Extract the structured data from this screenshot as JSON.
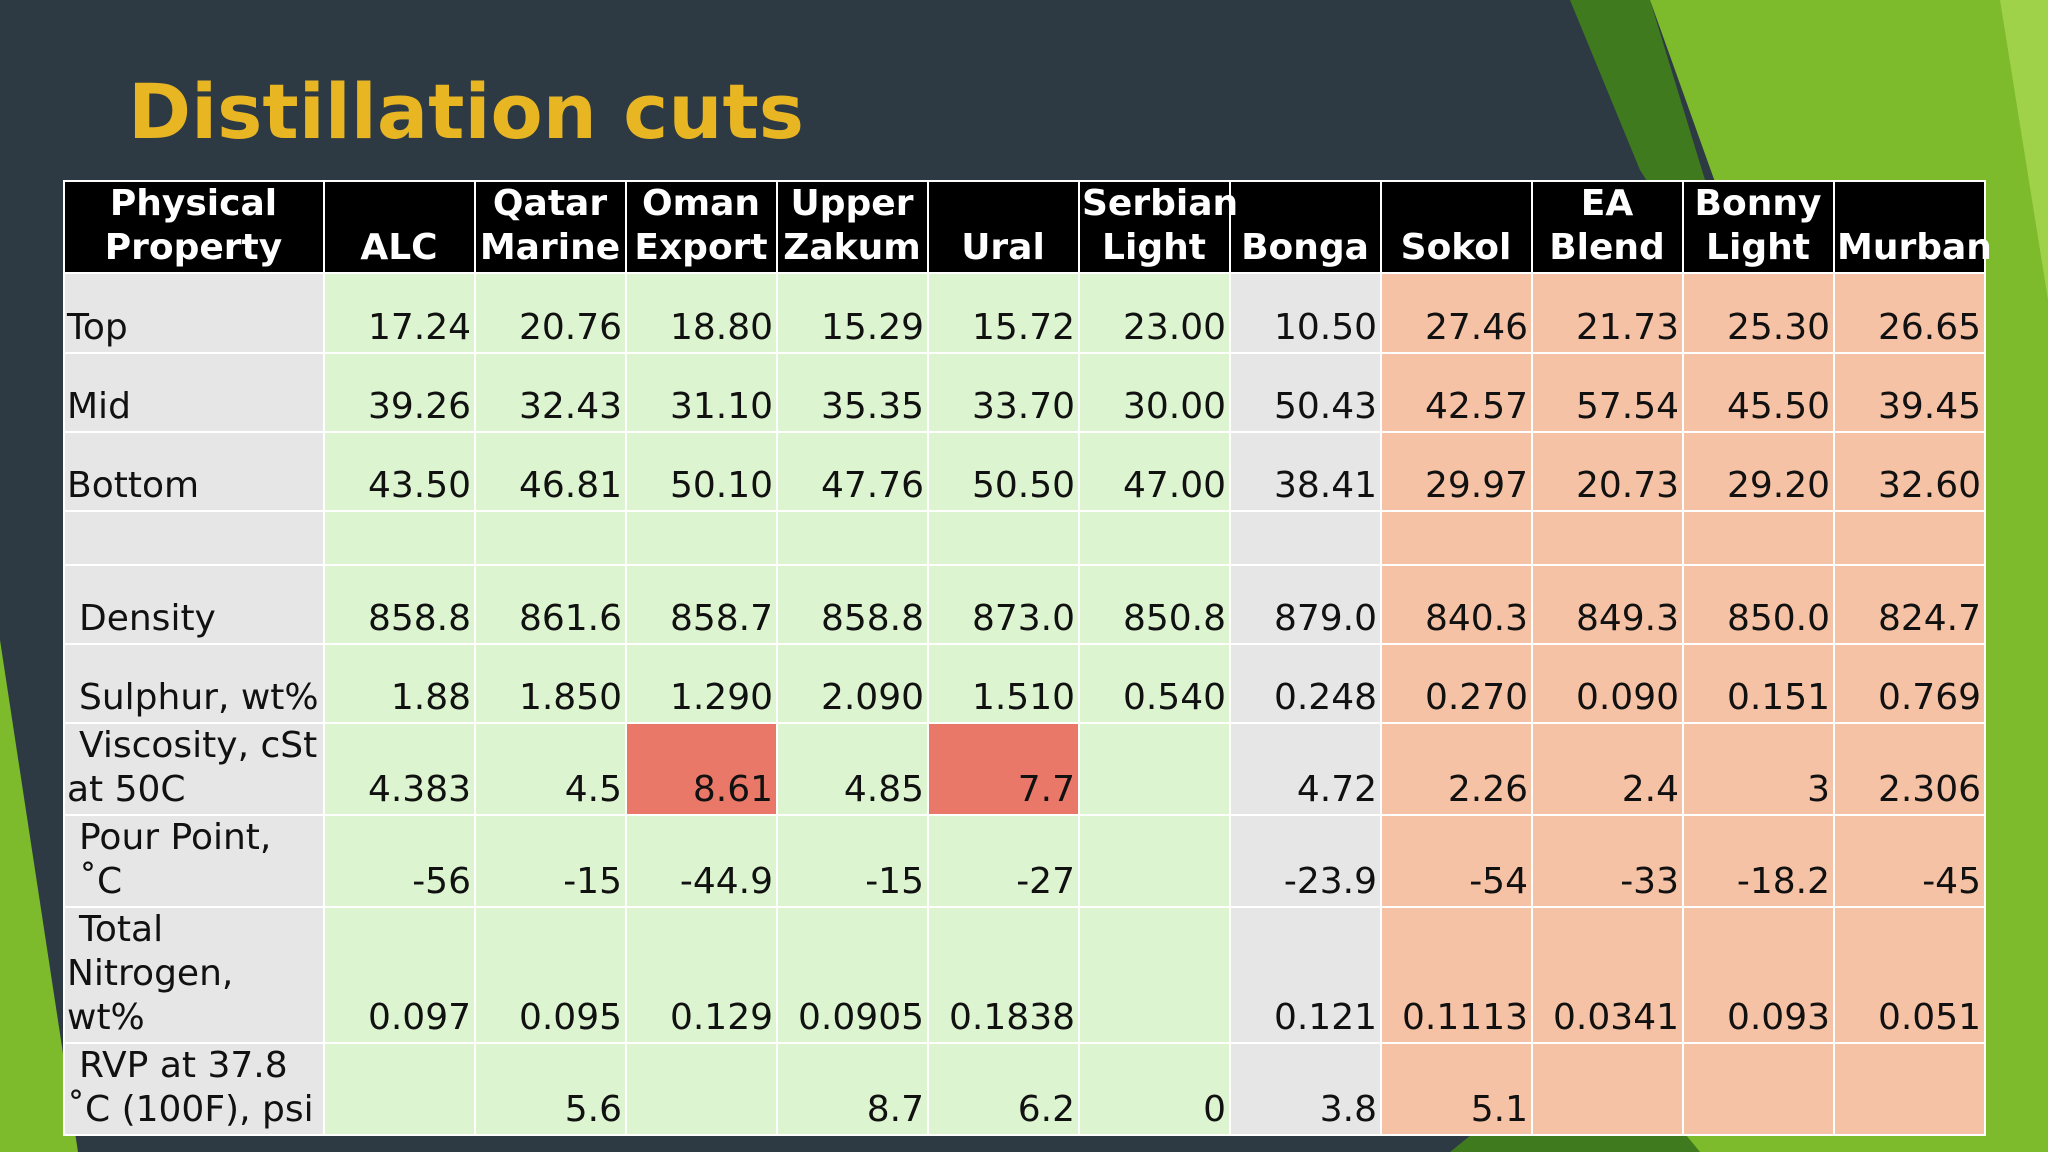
{
  "slide": {
    "title": "Distillation cuts",
    "colors": {
      "background": "#2d3a44",
      "title": "#e8b523",
      "header_bg": "#000000",
      "property_bg": "#e6e6e6",
      "green_cell": "#dcf5d0",
      "peach_cell": "#f6c2a5",
      "red_cell": "#ea7868",
      "accent_green": "#7dba2c"
    }
  },
  "table": {
    "headers": [
      {
        "line1": "Physical",
        "line2": "Property"
      },
      {
        "line1": "",
        "line2": "ALC"
      },
      {
        "line1": "Qatar",
        "line2": "Marine"
      },
      {
        "line1": "Oman",
        "line2": "Export"
      },
      {
        "line1": "Upper",
        "line2": "Zakum"
      },
      {
        "line1": "",
        "line2": "Ural"
      },
      {
        "line1": "Serbian",
        "line2": "Light"
      },
      {
        "line1": "",
        "line2": "Bonga"
      },
      {
        "line1": "",
        "line2": "Sokol"
      },
      {
        "line1": "EA",
        "line2": "Blend"
      },
      {
        "line1": "Bonny",
        "line2": "Light"
      },
      {
        "line1": "",
        "line2": "Murban"
      }
    ],
    "rows": [
      {
        "label1": "",
        "label2": "Top",
        "values": [
          "17.24",
          "20.76",
          "18.80",
          "15.29",
          "15.72",
          "23.00",
          "10.50",
          "27.46",
          "21.73",
          "25.30",
          "26.65"
        ]
      },
      {
        "label1": "",
        "label2": "Mid",
        "values": [
          "39.26",
          "32.43",
          "31.10",
          "35.35",
          "33.70",
          "30.00",
          "50.43",
          "42.57",
          "57.54",
          "45.50",
          "39.45"
        ]
      },
      {
        "label1": "",
        "label2": "Bottom",
        "values": [
          "43.50",
          "46.81",
          "50.10",
          "47.76",
          "50.50",
          "47.00",
          "38.41",
          "29.97",
          "20.73",
          "29.20",
          "32.60"
        ]
      },
      {
        "label1": "",
        "label2": "",
        "values": [
          "",
          "",
          "",
          "",
          "",
          "",
          "",
          "",
          "",
          "",
          ""
        ]
      },
      {
        "label1": "",
        "label2": "Density",
        "values": [
          "858.8",
          "861.6",
          "858.7",
          "858.8",
          "873.0",
          "850.8",
          "879.0",
          "840.3",
          "849.3",
          "850.0",
          "824.7"
        ]
      },
      {
        "label1": "",
        "label2": "Sulphur, wt%",
        "values": [
          "1.88",
          "1.850",
          "1.290",
          "2.090",
          "1.510",
          "0.540",
          "0.248",
          "0.270",
          "0.090",
          "0.151",
          "0.769"
        ]
      },
      {
        "label1": "Viscosity, cSt",
        "label2": "at 50C",
        "values": [
          "4.383",
          "4.5",
          "8.61",
          "4.85",
          "7.7",
          "",
          "4.72",
          "2.26",
          "2.4",
          "3",
          "2.306"
        ]
      },
      {
        "label1": "",
        "label2": "Pour Point, ˚C",
        "values": [
          "-56",
          "-15",
          "-44.9",
          "-15",
          "-27",
          "",
          "-23.9",
          "-54",
          "-33",
          "-18.2",
          "-45"
        ]
      },
      {
        "label1": "Total",
        "label2": "Nitrogen, wt%",
        "values": [
          "0.097",
          "0.095",
          "0.129",
          "0.0905",
          "0.1838",
          "",
          "0.121",
          "0.1113",
          "0.0341",
          "0.093",
          "0.051"
        ]
      },
      {
        "label1": "RVP at 37.8",
        "label2": "˚C (100F), psi",
        "values": [
          "",
          "5.6",
          "",
          "8.7",
          "6.2",
          "0",
          "3.8",
          "5.1",
          "",
          "",
          ""
        ]
      }
    ]
  }
}
